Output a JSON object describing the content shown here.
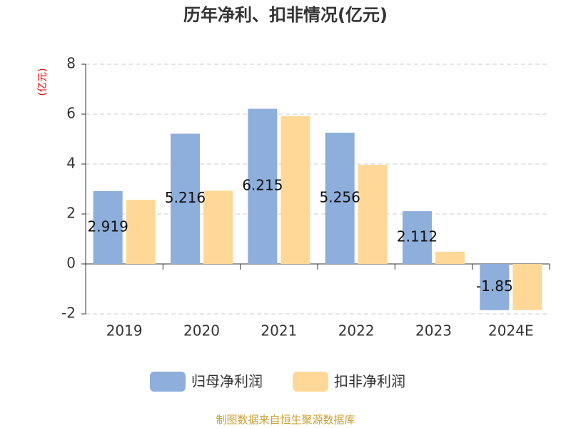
{
  "chart_data": {
    "type": "bar",
    "title": "历年净利、扣非情况(亿元)",
    "y_unit": "(亿元)",
    "categories": [
      "2019",
      "2020",
      "2021",
      "2022",
      "2023",
      "2024E"
    ],
    "series": [
      {
        "name": "归母净利润",
        "color": "#8eaedb",
        "values": [
          2.919,
          5.216,
          6.215,
          5.256,
          2.112,
          -1.85
        ]
      },
      {
        "name": "扣非净利润",
        "color": "#ffd898",
        "values": [
          2.57,
          2.93,
          5.92,
          3.97,
          0.49,
          -1.85
        ]
      }
    ],
    "ylim": [
      -2,
      8
    ],
    "yticks": [
      -2,
      0,
      2,
      4,
      6,
      8
    ],
    "grid": true,
    "source": "制图数据来自恒生聚源数据库"
  }
}
